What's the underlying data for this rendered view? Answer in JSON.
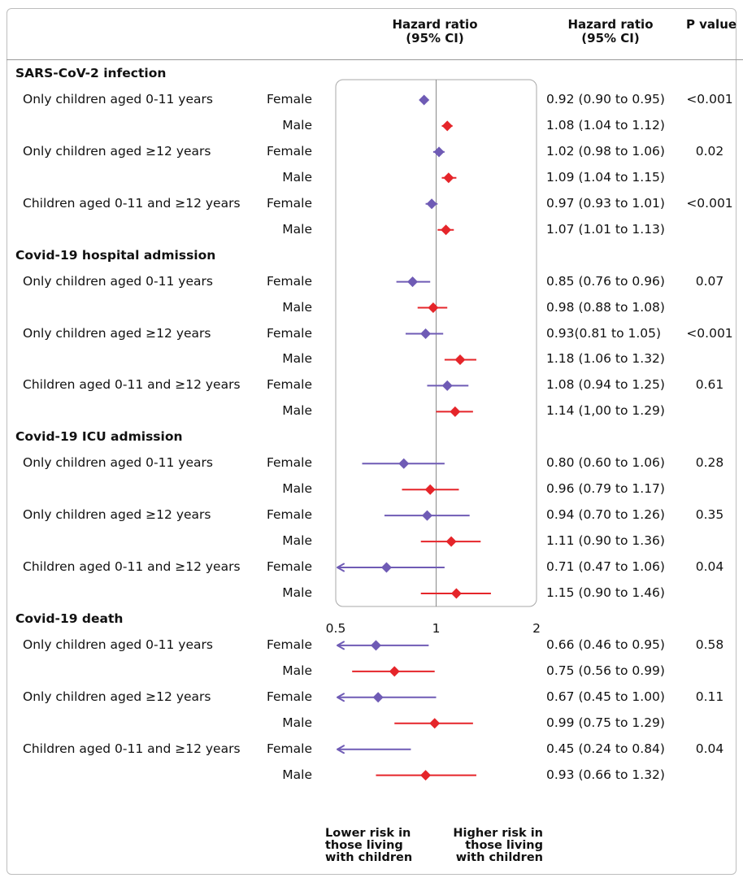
{
  "header": {
    "plot_header_line1": "Hazard ratio",
    "plot_header_line2": "(95% CI)",
    "hr_header_line1": "Hazard ratio",
    "hr_header_line2": "(95% CI)",
    "p_header": "P value"
  },
  "axis": {
    "tick_labels": [
      "0.5",
      "1",
      "2"
    ],
    "lower_label": [
      "Lower risk in",
      "those living",
      "with children"
    ],
    "higher_label": [
      "Higher risk in",
      "those living",
      "with children"
    ]
  },
  "colors": {
    "female": "#6f5bb5",
    "male": "#e5252a"
  },
  "chart_data": {
    "type": "forest",
    "x_scale": "log",
    "xlim": [
      0.5,
      2
    ],
    "reference_line": 1,
    "series": [
      {
        "name": "Female"
      },
      {
        "name": "Male"
      }
    ],
    "sections": [
      {
        "title": "SARS-CoV-2 infection",
        "groups": [
          {
            "label": "Only children aged 0-11 years",
            "p": "<0.001",
            "rows": [
              {
                "sex": "Female",
                "hr": 0.92,
                "lo": 0.9,
                "hi": 0.95,
                "text": "0.92 (0.90 to 0.95)"
              },
              {
                "sex": "Male",
                "hr": 1.08,
                "lo": 1.04,
                "hi": 1.12,
                "text": "1.08 (1.04 to 1.12)"
              }
            ]
          },
          {
            "label": "Only children aged ≥12 years",
            "p": "0.02",
            "rows": [
              {
                "sex": "Female",
                "hr": 1.02,
                "lo": 0.98,
                "hi": 1.06,
                "text": "1.02 (0.98 to 1.06)"
              },
              {
                "sex": "Male",
                "hr": 1.09,
                "lo": 1.04,
                "hi": 1.15,
                "text": "1.09 (1.04 to 1.15)"
              }
            ]
          },
          {
            "label": "Children aged 0-11 and ≥12 years",
            "p": "<0.001",
            "rows": [
              {
                "sex": "Female",
                "hr": 0.97,
                "lo": 0.93,
                "hi": 1.01,
                "text": "0.97 (0.93 to 1.01)"
              },
              {
                "sex": "Male",
                "hr": 1.07,
                "lo": 1.01,
                "hi": 1.13,
                "text": "1.07 (1.01 to 1.13)"
              }
            ]
          }
        ]
      },
      {
        "title": "Covid-19 hospital admission",
        "groups": [
          {
            "label": "Only children aged 0-11 years",
            "p": "0.07",
            "rows": [
              {
                "sex": "Female",
                "hr": 0.85,
                "lo": 0.76,
                "hi": 0.96,
                "text": "0.85 (0.76 to 0.96)"
              },
              {
                "sex": "Male",
                "hr": 0.98,
                "lo": 0.88,
                "hi": 1.08,
                "text": "0.98 (0.88 to 1.08)"
              }
            ]
          },
          {
            "label": "Only children aged ≥12 years",
            "p": "<0.001",
            "rows": [
              {
                "sex": "Female",
                "hr": 0.93,
                "lo": 0.81,
                "hi": 1.05,
                "text": "0.93(0.81 to 1.05)"
              },
              {
                "sex": "Male",
                "hr": 1.18,
                "lo": 1.06,
                "hi": 1.32,
                "text": "1.18 (1.06 to 1.32)"
              }
            ]
          },
          {
            "label": "Children aged 0-11 and ≥12 years",
            "p": "0.61",
            "rows": [
              {
                "sex": "Female",
                "hr": 1.08,
                "lo": 0.94,
                "hi": 1.25,
                "text": "1.08 (0.94 to 1.25)"
              },
              {
                "sex": "Male",
                "hr": 1.14,
                "lo": 1.0,
                "hi": 1.29,
                "text": "1.14 (1,00 to 1.29)"
              }
            ]
          }
        ]
      },
      {
        "title": "Covid-19 ICU admission",
        "groups": [
          {
            "label": "Only children aged 0-11 years",
            "p": "0.28",
            "rows": [
              {
                "sex": "Female",
                "hr": 0.8,
                "lo": 0.6,
                "hi": 1.06,
                "text": "0.80 (0.60 to 1.06)"
              },
              {
                "sex": "Male",
                "hr": 0.96,
                "lo": 0.79,
                "hi": 1.17,
                "text": "0.96 (0.79 to 1.17)"
              }
            ]
          },
          {
            "label": "Only children aged ≥12 years",
            "p": "0.35",
            "rows": [
              {
                "sex": "Female",
                "hr": 0.94,
                "lo": 0.7,
                "hi": 1.26,
                "text": "0.94 (0.70 to 1.26)"
              },
              {
                "sex": "Male",
                "hr": 1.11,
                "lo": 0.9,
                "hi": 1.36,
                "text": "1.11 (0.90 to 1.36)"
              }
            ]
          },
          {
            "label": "Children aged 0-11 and ≥12 years",
            "p": "0.04",
            "rows": [
              {
                "sex": "Female",
                "hr": 0.71,
                "lo": 0.47,
                "hi": 1.06,
                "text": "0.71 (0.47 to 1.06)"
              },
              {
                "sex": "Male",
                "hr": 1.15,
                "lo": 0.9,
                "hi": 1.46,
                "text": "1.15 (0.90 to 1.46)"
              }
            ]
          }
        ]
      },
      {
        "title": "Covid-19 death",
        "groups": [
          {
            "label": "Only children aged 0-11 years",
            "p": "0.58",
            "rows": [
              {
                "sex": "Female",
                "hr": 0.66,
                "lo": 0.46,
                "hi": 0.95,
                "text": "0.66 (0.46 to 0.95)"
              },
              {
                "sex": "Male",
                "hr": 0.75,
                "lo": 0.56,
                "hi": 0.99,
                "text": "0.75 (0.56 to 0.99)"
              }
            ]
          },
          {
            "label": "Only children aged ≥12 years",
            "p": "0.11",
            "rows": [
              {
                "sex": "Female",
                "hr": 0.67,
                "lo": 0.45,
                "hi": 1.0,
                "text": "0.67 (0.45 to 1.00)"
              },
              {
                "sex": "Male",
                "hr": 0.99,
                "lo": 0.75,
                "hi": 1.29,
                "text": "0.99 (0.75 to 1.29)"
              }
            ]
          },
          {
            "label": "Children aged 0-11 and ≥12 years",
            "p": "0.04",
            "rows": [
              {
                "sex": "Female",
                "hr": 0.45,
                "lo": 0.24,
                "hi": 0.84,
                "text": "0.45 (0.24 to 0.84)"
              },
              {
                "sex": "Male",
                "hr": 0.93,
                "lo": 0.66,
                "hi": 1.32,
                "text": "0.93 (0.66 to 1.32)"
              }
            ]
          }
        ]
      }
    ]
  }
}
